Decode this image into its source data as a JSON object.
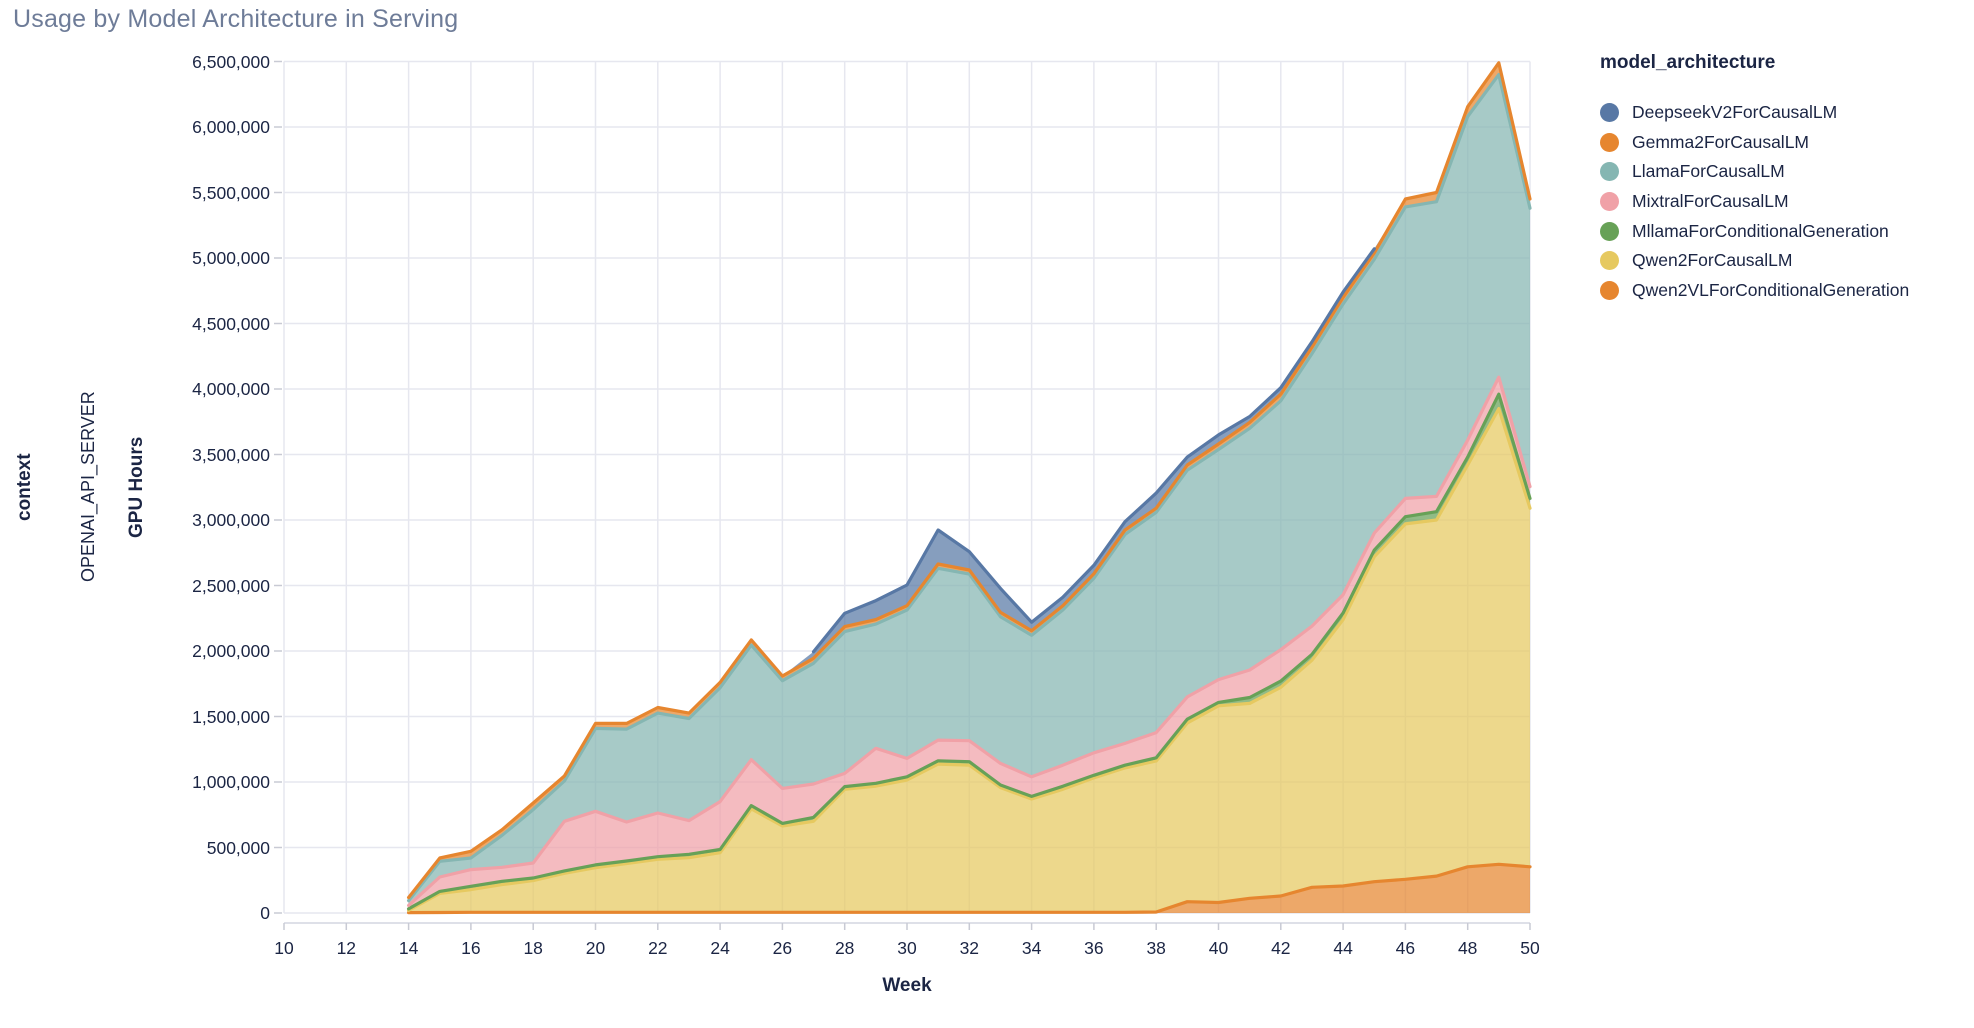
{
  "title": "Usage by Model Architecture in Serving",
  "facet": {
    "row_field_label": "context",
    "row_value": "OPENAI_API_SERVER"
  },
  "axes": {
    "x_title": "Week",
    "y_title": "GPU Hours",
    "x_ticks": [
      "10",
      "12",
      "14",
      "16",
      "18",
      "20",
      "22",
      "24",
      "26",
      "28",
      "30",
      "32",
      "34",
      "36",
      "38",
      "40",
      "42",
      "44",
      "46",
      "48",
      "50"
    ],
    "y_ticks": [
      "0",
      "500,000",
      "1,000,000",
      "1,500,000",
      "2,000,000",
      "2,500,000",
      "3,000,000",
      "3,500,000",
      "4,000,000",
      "4,500,000",
      "5,000,000",
      "5,500,000",
      "6,000,000",
      "6,500,000"
    ],
    "x_range": [
      10,
      50
    ],
    "y_range": [
      0,
      6500000
    ]
  },
  "legend": {
    "title": "model_architecture",
    "entries": [
      {
        "label": "DeepseekV2ForCausalLM",
        "color": "#5878a5"
      },
      {
        "label": "Gemma2ForCausalLM",
        "color": "#e6862f"
      },
      {
        "label": "LlamaForCausalLM",
        "color": "#85b6b2"
      },
      {
        "label": "MixtralForCausalLM",
        "color": "#f0a1a7"
      },
      {
        "label": "MllamaForConditionalGeneration",
        "color": "#67a157"
      },
      {
        "label": "Qwen2ForCausalLM",
        "color": "#e6c960"
      },
      {
        "label": "Qwen2VLForConditionalGeneration",
        "color": "#e6862f"
      }
    ]
  },
  "chart_data": {
    "type": "area",
    "stacked": true,
    "title": "Usage by Model Architecture in Serving",
    "xlabel": "Week",
    "ylabel": "GPU Hours",
    "xlim": [
      10,
      50
    ],
    "ylim": [
      0,
      6500000
    ],
    "grid": true,
    "legend_position": "right",
    "x": [
      14,
      15,
      16,
      17,
      18,
      19,
      20,
      21,
      22,
      23,
      24,
      25,
      26,
      27,
      28,
      29,
      30,
      31,
      32,
      33,
      34,
      35,
      36,
      37,
      38,
      39,
      40,
      41,
      42,
      43,
      44,
      45,
      46,
      47,
      48,
      49,
      50
    ],
    "stack_order_bottom_to_top": [
      "Qwen2VLForConditionalGeneration",
      "Qwen2ForCausalLM",
      "MllamaForConditionalGeneration",
      "MixtralForCausalLM",
      "LlamaForCausalLM",
      "Gemma2ForCausalLM",
      "DeepseekV2ForCausalLM"
    ],
    "series": [
      {
        "name": "Qwen2VLForConditionalGeneration",
        "color": "#e6862f",
        "values": [
          3000,
          4000,
          5000,
          5000,
          5000,
          5000,
          5000,
          5000,
          5000,
          5000,
          5000,
          5000,
          5000,
          5000,
          5000,
          5000,
          5000,
          5000,
          5000,
          5000,
          5000,
          5000,
          5000,
          5000,
          8000,
          86000,
          80000,
          112000,
          130000,
          196000,
          206000,
          239000,
          257000,
          282000,
          353000,
          372000,
          353000
        ]
      },
      {
        "name": "Qwen2ForCausalLM",
        "color": "#e6c960",
        "values": [
          17000,
          146000,
          174000,
          212000,
          242000,
          298000,
          341000,
          372000,
          405000,
          417000,
          455000,
          790000,
          659000,
          695000,
          939000,
          964000,
          1010000,
          1132000,
          1124000,
          952000,
          865000,
          939000,
          1026000,
          1103000,
          1152000,
          1364000,
          1502000,
          1488000,
          1593000,
          1734000,
          2034000,
          2481000,
          2713000,
          2718000,
          3067000,
          3478000,
          2737000
        ]
      },
      {
        "name": "MllamaForConditionalGeneration",
        "color": "#67a157",
        "values": [
          12000,
          15000,
          25000,
          25000,
          20000,
          18000,
          21000,
          20000,
          20000,
          26000,
          25000,
          25000,
          20000,
          30000,
          21000,
          21000,
          25000,
          25000,
          26000,
          20000,
          20000,
          23000,
          20000,
          20000,
          25000,
          30000,
          26000,
          45000,
          47000,
          45000,
          50000,
          50000,
          55000,
          63000,
          60000,
          110000,
          75000
        ]
      },
      {
        "name": "MixtralForCausalLM",
        "color": "#f0a1a7",
        "values": [
          26000,
          110000,
          127000,
          107000,
          115000,
          379000,
          409000,
          298000,
          333000,
          257000,
          365000,
          350000,
          267000,
          255000,
          101000,
          267000,
          140000,
          158000,
          160000,
          165000,
          150000,
          161000,
          172000,
          167000,
          192000,
          170000,
          174000,
          210000,
          240000,
          215000,
          140000,
          130000,
          140000,
          117000,
          130000,
          130000,
          90000
        ]
      },
      {
        "name": "LlamaForCausalLM",
        "color": "#85b6b2",
        "values": [
          37000,
          120000,
          89000,
          244000,
          407000,
          308000,
          633000,
          709000,
          763000,
          780000,
          870000,
          875000,
          822000,
          921000,
          1082000,
          948000,
          1133000,
          1311000,
          1273000,
          1120000,
          1080000,
          1185000,
          1333000,
          1595000,
          1682000,
          1730000,
          1756000,
          1845000,
          1900000,
          2080000,
          2220000,
          2090000,
          2225000,
          2250000,
          2470000,
          2310000,
          2125000
        ]
      },
      {
        "name": "Gemma2ForCausalLM",
        "color": "#e6862f",
        "values": [
          23000,
          25000,
          51000,
          43000,
          51000,
          38000,
          38000,
          43000,
          43000,
          41000,
          40000,
          40000,
          36000,
          38000,
          38000,
          35000,
          33000,
          33000,
          30000,
          33000,
          35000,
          33000,
          34000,
          33000,
          31000,
          40000,
          42000,
          45000,
          50000,
          50000,
          50000,
          50000,
          60000,
          70000,
          75000,
          90000,
          70000
        ]
      },
      {
        "name": "DeepseekV2ForCausalLM",
        "color": "#5878a5",
        "values": [
          0,
          0,
          0,
          0,
          0,
          0,
          0,
          0,
          0,
          0,
          0,
          0,
          0,
          51000,
          102000,
          145000,
          158000,
          260000,
          140000,
          183000,
          65000,
          64000,
          64000,
          64000,
          115000,
          60000,
          70000,
          45000,
          50000,
          40000,
          40000,
          30000,
          0,
          0,
          0,
          0,
          0
        ]
      }
    ]
  },
  "style": {
    "grid_color": "#e6e7ef",
    "axis_line_color": "#d4d6e0",
    "tick_color": "#c8cad4",
    "text_color": "#1b2544",
    "title_color": "#6e7c98",
    "fill_opacity": 0.72
  }
}
